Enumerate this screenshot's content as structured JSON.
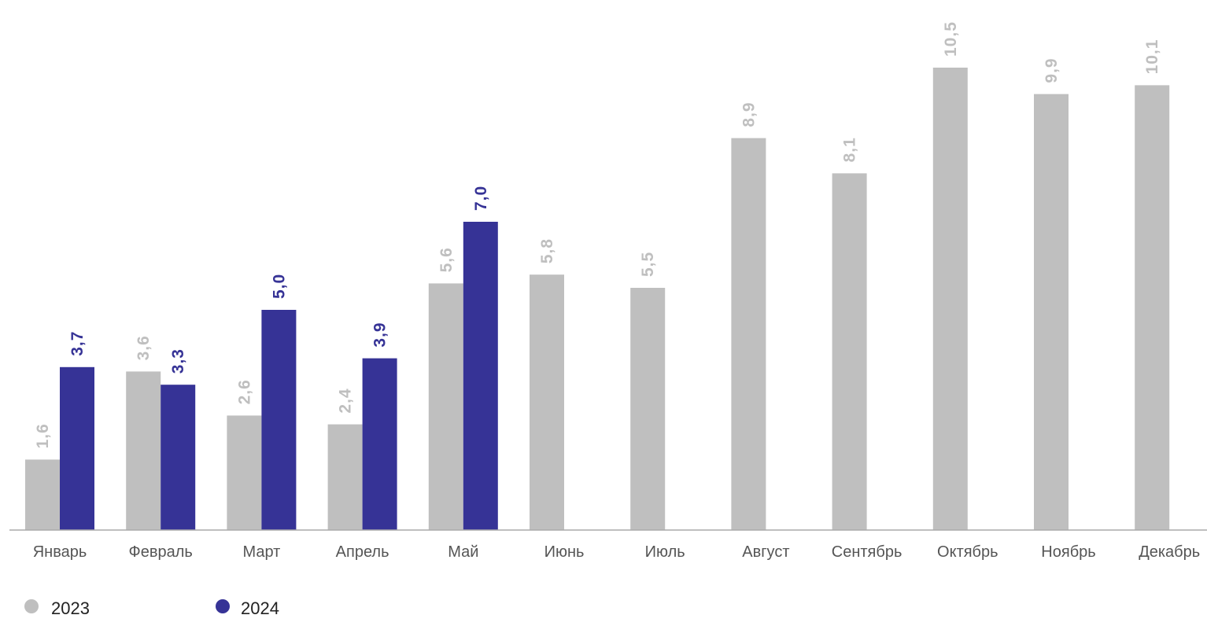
{
  "chart_data": {
    "type": "bar",
    "categories": [
      "Январь",
      "Февраль",
      "Март",
      "Апрель",
      "Май",
      "Июнь",
      "Июль",
      "Август",
      "Сентябрь",
      "Октябрь",
      "Ноябрь",
      "Декабрь"
    ],
    "series": [
      {
        "name": "2023",
        "color": "#bfbfbf",
        "values": [
          1.6,
          3.6,
          2.6,
          2.4,
          5.6,
          5.8,
          5.5,
          8.9,
          8.1,
          10.5,
          9.9,
          10.1
        ],
        "labels": [
          "1,6",
          "3,6",
          "2,6",
          "2,4",
          "5,6",
          "5,8",
          "5,5",
          "8,9",
          "8,1",
          "10,5",
          "9,9",
          "10,1"
        ]
      },
      {
        "name": "2024",
        "color": "#363396",
        "values": [
          3.7,
          3.3,
          5.0,
          3.9,
          7.0,
          null,
          null,
          null,
          null,
          null,
          null,
          null
        ],
        "labels": [
          "3,7",
          "3,3",
          "5,0",
          "3,9",
          "7,0",
          null,
          null,
          null,
          null,
          null,
          null,
          null
        ]
      }
    ],
    "ylim": [
      0,
      11
    ],
    "grid": false,
    "legend_position": "bottom-left"
  }
}
